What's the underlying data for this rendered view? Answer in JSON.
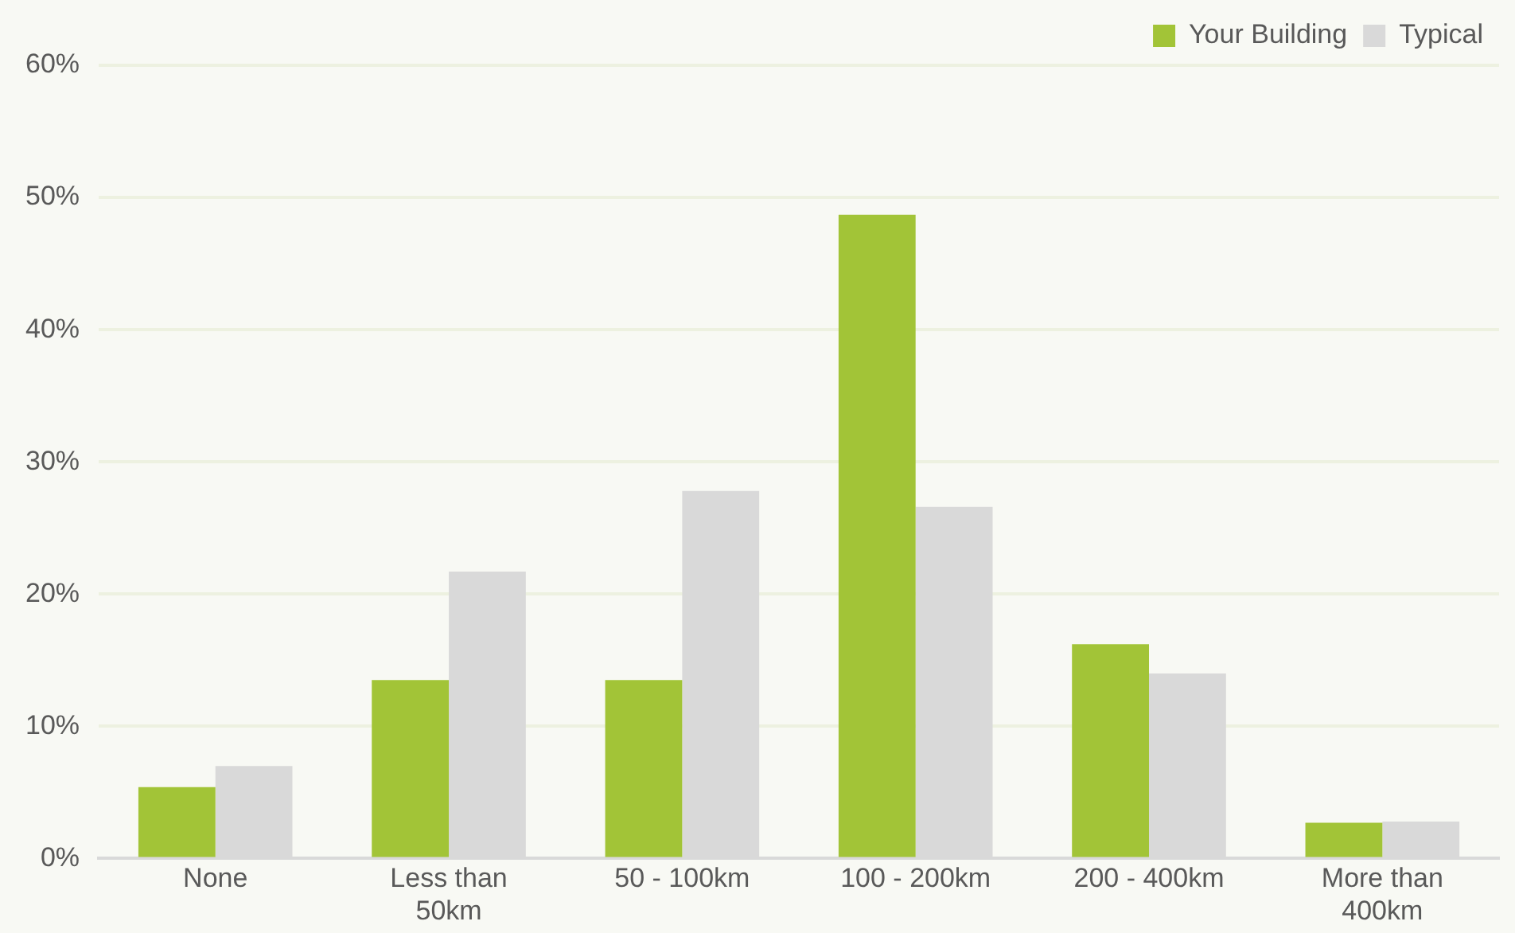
{
  "chart_data": {
    "type": "bar",
    "categories": [
      "None",
      "Less than 50km",
      "50 - 100km",
      "100 - 200km",
      "200 - 400km",
      "More than 400km"
    ],
    "series": [
      {
        "name": "Your Building",
        "color": "#a2c437",
        "values": [
          5.4,
          13.5,
          13.5,
          48.7,
          16.2,
          2.7
        ]
      },
      {
        "name": "Typical",
        "color": "#d9d9d9",
        "values": [
          7.0,
          21.7,
          27.8,
          26.6,
          14.0,
          2.8
        ]
      }
    ],
    "ylim": [
      0,
      60
    ],
    "yticks": [
      {
        "value": 0,
        "label": "0%"
      },
      {
        "value": 10,
        "label": "10%"
      },
      {
        "value": 20,
        "label": "20%"
      },
      {
        "value": 30,
        "label": "30%"
      },
      {
        "value": 40,
        "label": "40%"
      },
      {
        "value": 50,
        "label": "50%"
      },
      {
        "value": 60,
        "label": "60%"
      }
    ],
    "grid": "y",
    "legend": "top right"
  }
}
